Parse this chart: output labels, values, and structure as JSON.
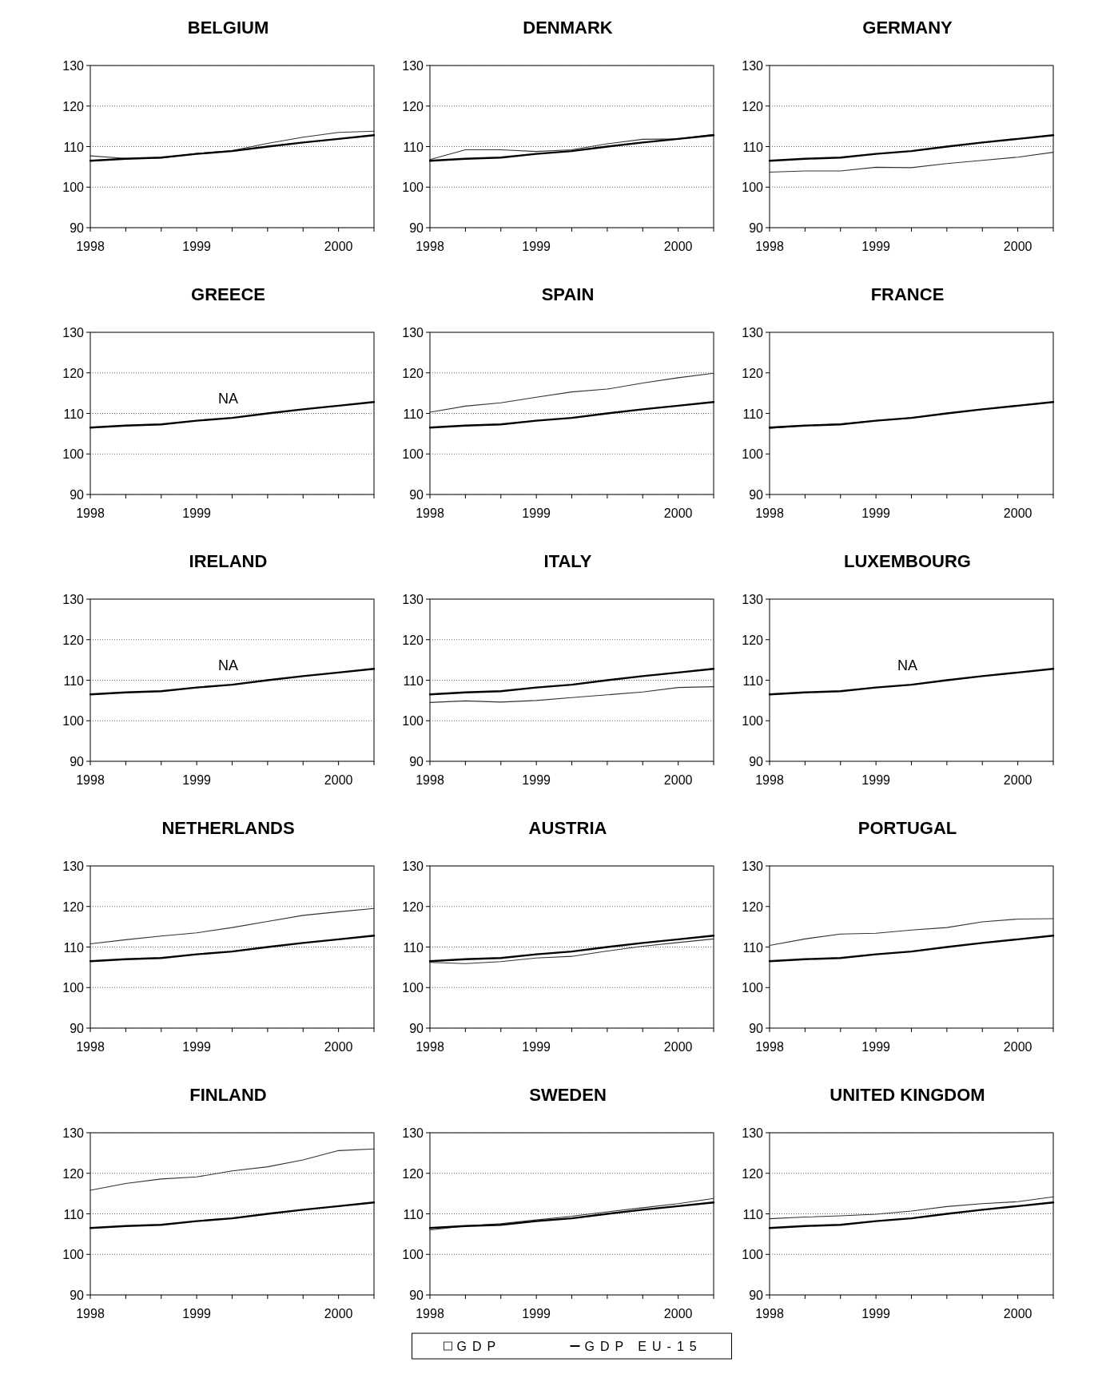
{
  "chart_data": [
    {
      "type": "line",
      "title": "BELGIUM",
      "categories": [
        "1998",
        null,
        null,
        "1999",
        null,
        null,
        null,
        "2000",
        null
      ],
      "ylim": [
        90,
        130
      ],
      "yticks": [
        90,
        100,
        110,
        120,
        130
      ],
      "grid": "y",
      "series": [
        {
          "color": "#333333",
          "values": [
            107.7,
            107.1,
            107.2,
            108.3,
            109.0,
            110.8,
            112.3,
            113.5,
            113.8
          ]
        },
        {
          "color": "#000000",
          "values": [
            106.5,
            107.0,
            107.3,
            108.2,
            108.9,
            110.0,
            111.0,
            111.9,
            112.8
          ]
        }
      ]
    },
    {
      "type": "line",
      "title": "DENMARK",
      "categories": [
        "1998",
        null,
        null,
        "1999",
        null,
        null,
        null,
        "2000",
        null
      ],
      "ylim": [
        90,
        130
      ],
      "yticks": [
        90,
        100,
        110,
        120,
        130
      ],
      "grid": "y",
      "series": [
        {
          "color": "#333333",
          "values": [
            106.8,
            109.2,
            109.2,
            108.8,
            109.2,
            110.7,
            111.8,
            111.9,
            113.0
          ]
        },
        {
          "color": "#000000",
          "values": [
            106.5,
            107.0,
            107.3,
            108.2,
            108.9,
            110.0,
            111.0,
            111.9,
            112.8
          ]
        }
      ]
    },
    {
      "type": "line",
      "title": "GERMANY",
      "categories": [
        "1998",
        null,
        null,
        "1999",
        null,
        null,
        null,
        "2000",
        null
      ],
      "ylim": [
        90,
        130
      ],
      "yticks": [
        90,
        100,
        110,
        120,
        130
      ],
      "grid": "y",
      "series": [
        {
          "color": "#333333",
          "values": [
            103.7,
            104.0,
            104.0,
            104.9,
            104.8,
            105.8,
            106.6,
            107.4,
            108.6
          ]
        },
        {
          "color": "#000000",
          "values": [
            106.5,
            107.0,
            107.3,
            108.2,
            108.9,
            110.0,
            111.0,
            111.9,
            112.8
          ]
        }
      ]
    },
    {
      "type": "line",
      "title": "GREECE",
      "categories": [
        "1998",
        null,
        null,
        "1999",
        null,
        null,
        null,
        null,
        null
      ],
      "ylim": [
        90,
        130
      ],
      "yticks": [
        90,
        100,
        110,
        120,
        130
      ],
      "grid": "y",
      "annotations": [
        "NA"
      ],
      "series": [
        {
          "color": "#000000",
          "values": [
            106.5,
            107.0,
            107.3,
            108.2,
            108.9,
            110.0,
            111.0,
            111.9,
            112.8
          ]
        }
      ]
    },
    {
      "type": "line",
      "title": "SPAIN",
      "categories": [
        "1998",
        null,
        null,
        "1999",
        null,
        null,
        null,
        "2000",
        null
      ],
      "ylim": [
        90,
        130
      ],
      "yticks": [
        90,
        100,
        110,
        120,
        130
      ],
      "grid": "y",
      "series": [
        {
          "color": "#333333",
          "values": [
            110.3,
            111.8,
            112.6,
            114.0,
            115.3,
            116.0,
            117.5,
            118.8,
            119.9
          ]
        },
        {
          "color": "#000000",
          "values": [
            106.5,
            107.0,
            107.3,
            108.2,
            108.9,
            110.0,
            111.0,
            111.9,
            112.8
          ]
        }
      ]
    },
    {
      "type": "line",
      "title": "FRANCE",
      "categories": [
        "1998",
        null,
        null,
        "1999",
        null,
        null,
        null,
        "2000",
        null
      ],
      "ylim": [
        90,
        130
      ],
      "yticks": [
        90,
        100,
        110,
        120,
        130
      ],
      "grid": false,
      "series": [
        {
          "color": "#333333",
          "values": [
            106.3,
            107.0,
            107.4,
            108.2,
            108.9,
            110.0,
            111.0,
            111.9,
            112.8
          ]
        },
        {
          "color": "#000000",
          "values": [
            106.5,
            107.0,
            107.3,
            108.2,
            108.9,
            110.0,
            111.0,
            111.9,
            112.8
          ]
        }
      ]
    },
    {
      "type": "line",
      "title": "IRELAND",
      "categories": [
        "1998",
        null,
        null,
        "1999",
        null,
        null,
        null,
        "2000",
        null
      ],
      "ylim": [
        90,
        130
      ],
      "yticks": [
        90,
        100,
        110,
        120,
        130
      ],
      "grid": "y",
      "annotations": [
        "NA"
      ],
      "series": [
        {
          "color": "#000000",
          "values": [
            106.5,
            107.0,
            107.3,
            108.2,
            108.9,
            110.0,
            111.0,
            111.9,
            112.8
          ]
        }
      ]
    },
    {
      "type": "line",
      "title": "ITALY",
      "categories": [
        "1998",
        null,
        null,
        "1999",
        null,
        null,
        null,
        "2000",
        null
      ],
      "ylim": [
        90,
        130
      ],
      "yticks": [
        90,
        100,
        110,
        120,
        130
      ],
      "grid": "y",
      "series": [
        {
          "color": "#333333",
          "values": [
            104.5,
            104.9,
            104.6,
            105.0,
            105.7,
            106.4,
            107.1,
            108.2,
            108.4
          ]
        },
        {
          "color": "#000000",
          "values": [
            106.5,
            107.0,
            107.3,
            108.2,
            108.9,
            110.0,
            111.0,
            111.9,
            112.8
          ]
        }
      ]
    },
    {
      "type": "line",
      "title": "LUXEMBOURG",
      "categories": [
        "1998",
        null,
        null,
        "1999",
        null,
        null,
        null,
        "2000",
        null
      ],
      "ylim": [
        90,
        130
      ],
      "yticks": [
        90,
        100,
        110,
        120,
        130
      ],
      "grid": false,
      "annotations": [
        "NA"
      ],
      "series": [
        {
          "color": "#000000",
          "values": [
            106.5,
            107.0,
            107.3,
            108.2,
            108.9,
            110.0,
            111.0,
            111.9,
            112.8
          ]
        }
      ]
    },
    {
      "type": "line",
      "title": "NETHERLANDS",
      "categories": [
        "1998",
        null,
        null,
        "1999",
        null,
        null,
        null,
        "2000",
        null
      ],
      "ylim": [
        90,
        130
      ],
      "yticks": [
        90,
        100,
        110,
        120,
        130
      ],
      "grid": "y",
      "series": [
        {
          "color": "#333333",
          "values": [
            110.8,
            111.8,
            112.7,
            113.5,
            114.8,
            116.3,
            117.8,
            118.7,
            119.5
          ]
        },
        {
          "color": "#000000",
          "values": [
            106.5,
            107.0,
            107.3,
            108.2,
            108.9,
            110.0,
            111.0,
            111.9,
            112.8
          ]
        }
      ]
    },
    {
      "type": "line",
      "title": "AUSTRIA",
      "categories": [
        "1998",
        null,
        null,
        "1999",
        null,
        null,
        null,
        "2000",
        null
      ],
      "ylim": [
        90,
        130
      ],
      "yticks": [
        90,
        100,
        110,
        120,
        130
      ],
      "grid": "y",
      "series": [
        {
          "color": "#333333",
          "values": [
            106.2,
            105.9,
            106.4,
            107.3,
            107.7,
            109.0,
            110.2,
            111.1,
            112.0
          ]
        },
        {
          "color": "#000000",
          "values": [
            106.5,
            107.0,
            107.3,
            108.2,
            108.9,
            110.0,
            111.0,
            111.9,
            112.8
          ]
        }
      ]
    },
    {
      "type": "line",
      "title": "PORTUGAL",
      "categories": [
        "1998",
        null,
        null,
        "1999",
        null,
        null,
        null,
        "2000",
        null
      ],
      "ylim": [
        90,
        130
      ],
      "yticks": [
        90,
        100,
        110,
        120,
        130
      ],
      "grid": false,
      "series": [
        {
          "color": "#333333",
          "values": [
            110.4,
            112.0,
            113.2,
            113.4,
            114.2,
            114.8,
            116.2,
            116.9,
            117.0
          ]
        },
        {
          "color": "#000000",
          "values": [
            106.5,
            107.0,
            107.3,
            108.2,
            108.9,
            110.0,
            111.0,
            111.9,
            112.8
          ]
        }
      ]
    },
    {
      "type": "line",
      "title": "FINLAND",
      "categories": [
        "1998",
        null,
        null,
        "1999",
        null,
        null,
        null,
        "2000",
        null
      ],
      "ylim": [
        90,
        130
      ],
      "yticks": [
        90,
        100,
        110,
        120,
        130
      ],
      "grid": "y",
      "series": [
        {
          "color": "#333333",
          "values": [
            115.8,
            117.5,
            118.6,
            119.1,
            120.6,
            121.6,
            123.3,
            125.6,
            126.0
          ]
        },
        {
          "color": "#000000",
          "values": [
            106.5,
            107.0,
            107.3,
            108.2,
            108.9,
            110.0,
            111.0,
            111.9,
            112.8
          ]
        }
      ]
    },
    {
      "type": "line",
      "title": "SWEDEN",
      "categories": [
        "1998",
        null,
        null,
        "1999",
        null,
        null,
        null,
        "2000",
        null
      ],
      "ylim": [
        90,
        130
      ],
      "yticks": [
        90,
        100,
        110,
        120,
        130
      ],
      "grid": "y",
      "legend": "bottom",
      "series": [
        {
          "name": "GDP",
          "color": "#333333",
          "values": [
            106.0,
            107.0,
            107.6,
            108.5,
            109.4,
            110.5,
            111.5,
            112.5,
            113.8
          ]
        },
        {
          "name": "GDP EU-15",
          "color": "#000000",
          "values": [
            106.5,
            107.0,
            107.3,
            108.2,
            108.9,
            110.0,
            111.0,
            111.9,
            112.8
          ]
        }
      ]
    },
    {
      "type": "line",
      "title": "UNITED KINGDOM",
      "categories": [
        "1998",
        null,
        null,
        "1999",
        null,
        null,
        null,
        "2000",
        null
      ],
      "ylim": [
        90,
        130
      ],
      "yticks": [
        90,
        100,
        110,
        120,
        130
      ],
      "grid": "y",
      "series": [
        {
          "color": "#333333",
          "values": [
            108.8,
            109.2,
            109.5,
            109.9,
            110.7,
            111.8,
            112.5,
            113.0,
            114.2
          ]
        },
        {
          "color": "#000000",
          "values": [
            106.5,
            107.0,
            107.3,
            108.2,
            108.9,
            110.0,
            111.0,
            111.9,
            112.8
          ]
        }
      ]
    }
  ]
}
